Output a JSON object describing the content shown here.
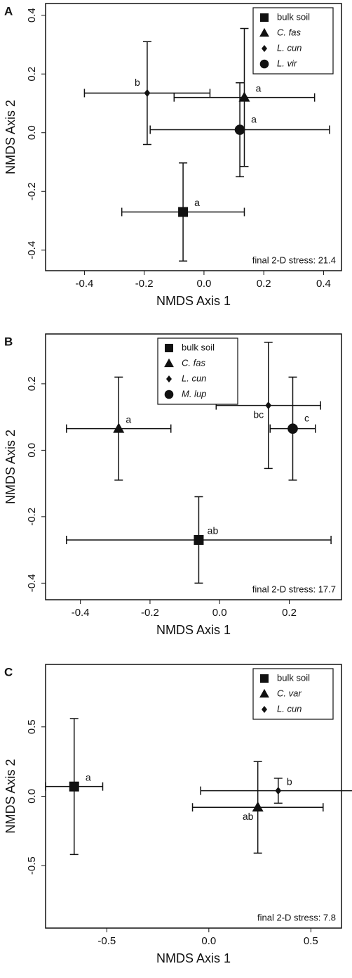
{
  "chart_data": [
    {
      "type": "scatter",
      "panel": "A",
      "xlabel": "NMDS Axis 1",
      "ylabel": "NMDS Axis 2",
      "annotation": "final 2-D stress: 21.4",
      "xlim": [
        -0.53,
        0.46
      ],
      "ylim": [
        -0.47,
        0.44
      ],
      "xticks": [
        {
          "value": -0.4,
          "label": "-0.4"
        },
        {
          "value": -0.2,
          "label": "-0.2"
        },
        {
          "value": 0,
          "label": "0.0"
        },
        {
          "value": 0.2,
          "label": "0.2"
        },
        {
          "value": 0.4,
          "label": "0.4"
        }
      ],
      "yticks": [
        {
          "value": -0.4,
          "label": "-0.4"
        },
        {
          "value": -0.2,
          "label": "-0.2"
        },
        {
          "value": 0,
          "label": "0.0"
        },
        {
          "value": 0.2,
          "label": "0.2"
        },
        {
          "value": 0.4,
          "label": "0.4"
        }
      ],
      "legend": "upper right",
      "series": [
        {
          "name": "bulk soil",
          "marker": "square",
          "color": "#111111",
          "x": -0.07,
          "y": -0.27,
          "xerr": 0.205,
          "yerr": 0.167,
          "group": "a"
        },
        {
          "name": "C. fas",
          "marker": "triangle",
          "italic": true,
          "color": "#111111",
          "x": 0.135,
          "y": 0.12,
          "xerr": 0.235,
          "yerr": 0.235,
          "group": "a"
        },
        {
          "name": "L. cun",
          "marker": "diamond",
          "italic": true,
          "color": "#111111",
          "x": -0.19,
          "y": 0.135,
          "xerr": 0.21,
          "yerr": 0.175,
          "group": "b"
        },
        {
          "name": "L. vir",
          "marker": "circle",
          "italic": true,
          "color": "#111111",
          "x": 0.12,
          "y": 0.01,
          "xerr": 0.3,
          "yerr": 0.16,
          "group": "a"
        }
      ]
    },
    {
      "type": "scatter",
      "panel": "B",
      "xlabel": "NMDS Axis 1",
      "ylabel": "NMDS Axis 2",
      "annotation": "final 2-D stress: 17.7",
      "xlim": [
        -0.5,
        0.35
      ],
      "ylim": [
        -0.45,
        0.35
      ],
      "xticks": [
        {
          "value": -0.4,
          "label": "-0.4"
        },
        {
          "value": -0.2,
          "label": "-0.2"
        },
        {
          "value": 0,
          "label": "0.0"
        },
        {
          "value": 0.2,
          "label": "0.2"
        }
      ],
      "yticks": [
        {
          "value": -0.4,
          "label": "-0.4"
        },
        {
          "value": -0.2,
          "label": "-0.2"
        },
        {
          "value": 0,
          "label": "0.0"
        },
        {
          "value": 0.2,
          "label": "0.2"
        }
      ],
      "legend": "upper center",
      "series": [
        {
          "name": "bulk soil",
          "marker": "square",
          "color": "#111111",
          "x": -0.06,
          "y": -0.27,
          "xerr": 0.38,
          "yerr": 0.13,
          "group": "ab"
        },
        {
          "name": "C. fas",
          "marker": "triangle",
          "italic": true,
          "color": "#111111",
          "x": -0.29,
          "y": 0.065,
          "xerr": 0.15,
          "yerr": 0.155,
          "group": "a"
        },
        {
          "name": "L. cun",
          "marker": "diamond",
          "italic": true,
          "color": "#111111",
          "x": 0.14,
          "y": 0.135,
          "xerr": 0.15,
          "yerr": 0.19,
          "group": "bc"
        },
        {
          "name": "M. lup",
          "marker": "circle",
          "italic": true,
          "color": "#111111",
          "x": 0.21,
          "y": 0.065,
          "xerr": 0.065,
          "yerr": 0.155,
          "group": "c"
        }
      ]
    },
    {
      "type": "scatter",
      "panel": "C",
      "xlabel": "NMDS Axis 1",
      "ylabel": "NMDS Axis 2",
      "annotation": "final 2-D stress: 7.8",
      "xlim": [
        -0.8,
        0.65
      ],
      "ylim": [
        -0.95,
        0.95
      ],
      "xticks": [
        {
          "value": -0.5,
          "label": "-0.5"
        },
        {
          "value": 0,
          "label": "0.0"
        },
        {
          "value": 0.5,
          "label": "0.5"
        }
      ],
      "yticks": [
        {
          "value": -0.5,
          "label": "-0.5"
        },
        {
          "value": 0,
          "label": "0.0"
        },
        {
          "value": 0.5,
          "label": "0.5"
        }
      ],
      "legend": "upper right",
      "series": [
        {
          "name": "bulk soil",
          "marker": "square",
          "color": "#111111",
          "x": -0.66,
          "y": 0.07,
          "xerr": 0.14,
          "yerr": 0.49,
          "group": "a"
        },
        {
          "name": "C. var",
          "marker": "triangle",
          "italic": true,
          "color": "#111111",
          "x": 0.24,
          "y": -0.08,
          "xerr": 0.32,
          "yerr": 0.33,
          "group": "ab"
        },
        {
          "name": "L. cun",
          "marker": "diamond",
          "italic": true,
          "color": "#111111",
          "x": 0.34,
          "y": 0.04,
          "xerr": 0.38,
          "yerr": 0.09,
          "group": "b"
        }
      ]
    }
  ]
}
